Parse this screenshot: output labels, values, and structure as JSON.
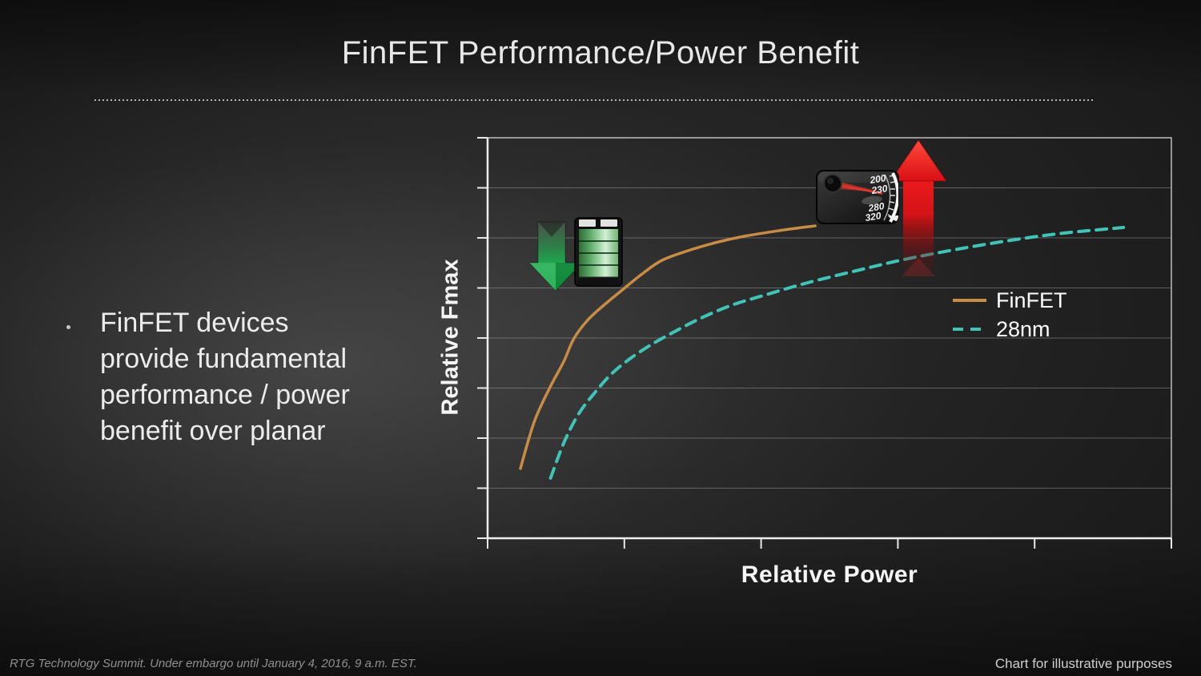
{
  "slide": {
    "title": "FinFET Performance/Power Benefit",
    "bullet": {
      "lines": [
        "FinFET devices",
        "provide fundamental",
        "performance / power",
        "benefit over planar"
      ]
    },
    "footer_left": "RTG Technology Summit. Under embargo until January 4, 2016, 9 a.m. EST.",
    "footer_right": "Chart for illustrative purposes"
  },
  "chart_data": {
    "type": "line",
    "title": "FinFET Performance/Power Benefit",
    "xlabel": "Relative Power",
    "ylabel": "Relative Fmax",
    "xlim": [
      0,
      1
    ],
    "ylim": [
      0,
      1
    ],
    "x_tick_labels": [],
    "y_tick_labels": [],
    "x_tick_count": 6,
    "y_tick_count": 9,
    "grid": "horizontal gridlines only",
    "legend_position": "middle-right",
    "series": [
      {
        "name": "FinFET",
        "color": "#c98c44",
        "style": "solid",
        "points": [
          [
            0.048,
            0.174
          ],
          [
            0.068,
            0.29
          ],
          [
            0.091,
            0.376
          ],
          [
            0.111,
            0.44
          ],
          [
            0.126,
            0.498
          ],
          [
            0.146,
            0.544
          ],
          [
            0.17,
            0.582
          ],
          [
            0.197,
            0.62
          ],
          [
            0.226,
            0.66
          ],
          [
            0.255,
            0.694
          ],
          [
            0.293,
            0.718
          ],
          [
            0.333,
            0.738
          ],
          [
            0.375,
            0.754
          ],
          [
            0.426,
            0.768
          ],
          [
            0.479,
            0.78
          ]
        ]
      },
      {
        "name": "28nm",
        "color": "#40c4b7",
        "style": "dashed",
        "points": [
          [
            0.092,
            0.15
          ],
          [
            0.112,
            0.24
          ],
          [
            0.133,
            0.31
          ],
          [
            0.157,
            0.364
          ],
          [
            0.181,
            0.41
          ],
          [
            0.208,
            0.448
          ],
          [
            0.238,
            0.482
          ],
          [
            0.267,
            0.51
          ],
          [
            0.31,
            0.548
          ],
          [
            0.357,
            0.582
          ],
          [
            0.407,
            0.608
          ],
          [
            0.468,
            0.638
          ],
          [
            0.539,
            0.668
          ],
          [
            0.609,
            0.696
          ],
          [
            0.688,
            0.722
          ],
          [
            0.773,
            0.746
          ],
          [
            0.843,
            0.762
          ],
          [
            0.93,
            0.776
          ]
        ]
      }
    ],
    "annotations": [
      {
        "name": "low-power-marker",
        "icons": [
          "green-down-arrow-icon",
          "battery-icon"
        ]
      },
      {
        "name": "high-performance-marker",
        "icons": [
          "speedometer-icon",
          "red-up-arrow-icon"
        ],
        "speedometer_numbers": [
          "200",
          "230",
          "280",
          "320"
        ]
      }
    ]
  }
}
